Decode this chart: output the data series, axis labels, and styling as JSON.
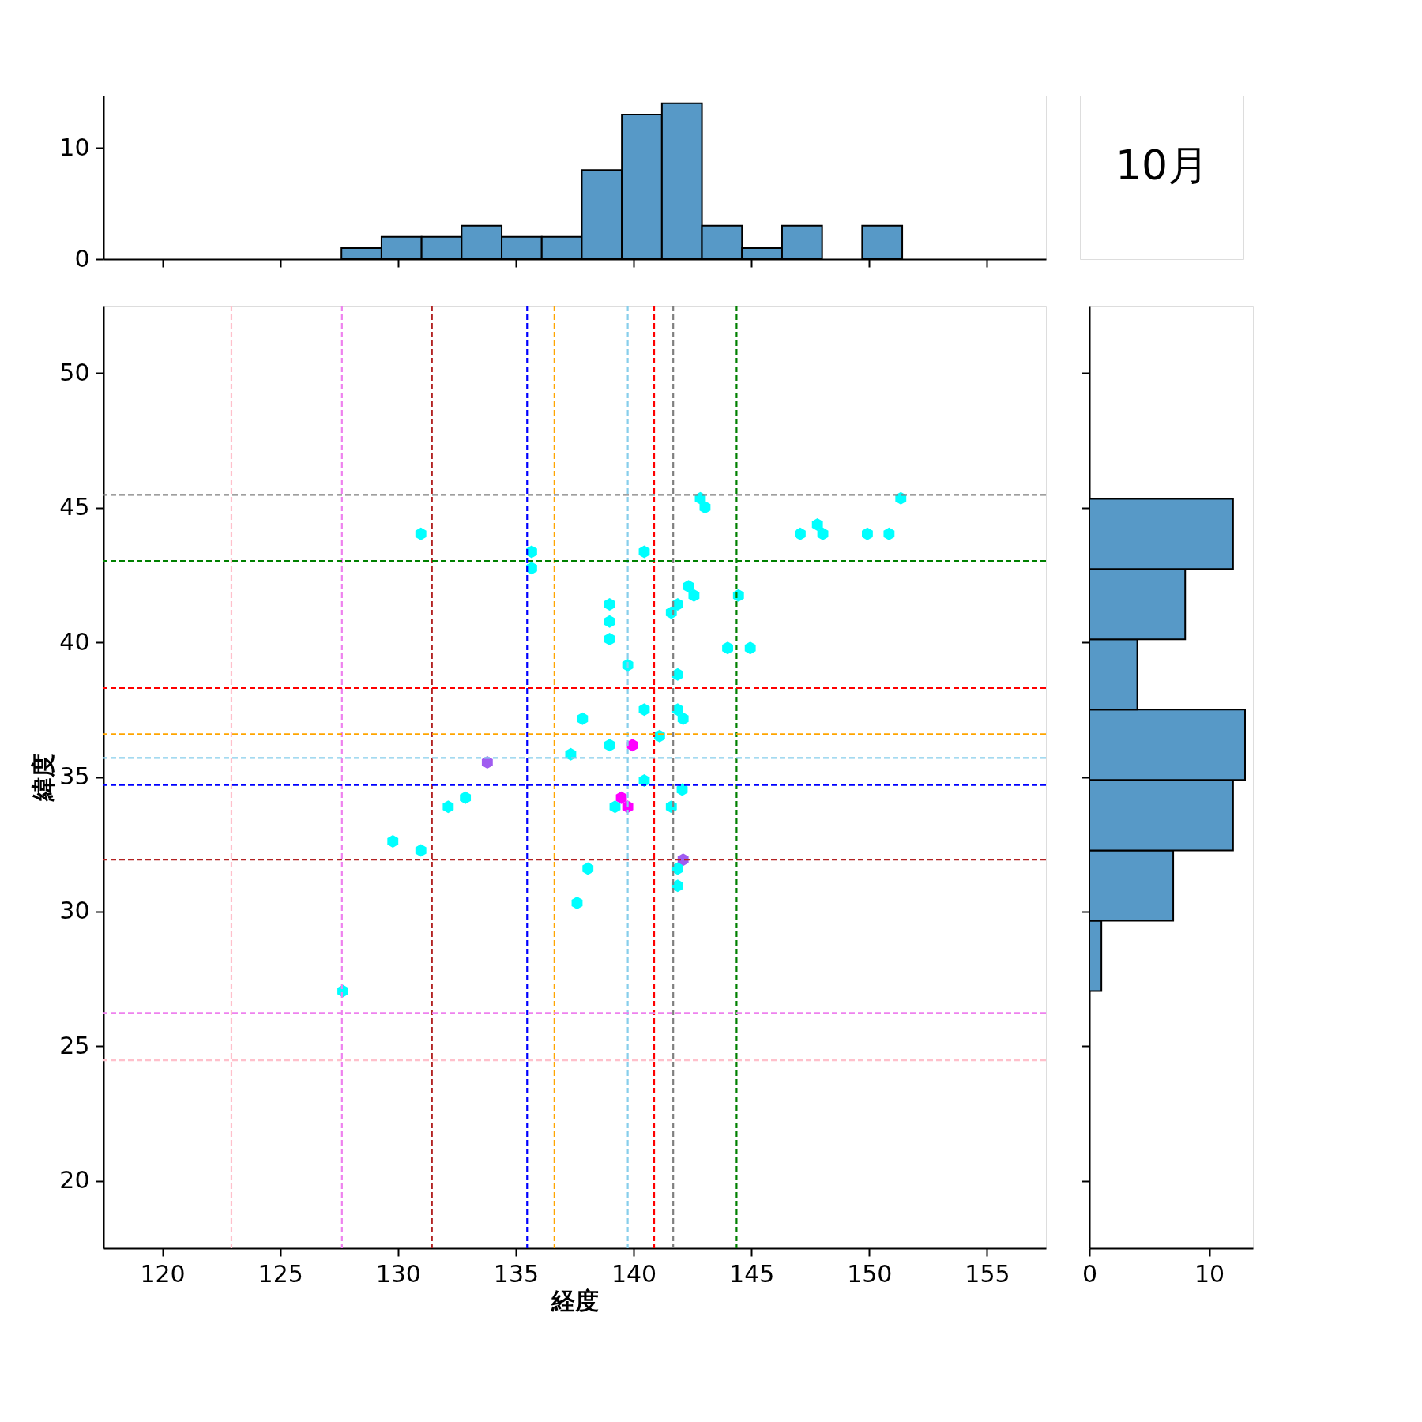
{
  "chart_data": [
    {
      "type": "histogram",
      "bins": [
        127.6,
        129.3,
        131.0,
        132.7,
        134.4,
        136.1,
        137.8,
        139.5,
        141.2,
        142.9,
        144.6,
        146.3,
        148.0,
        149.7,
        151.4
      ],
      "values": [
        1,
        2,
        2,
        3,
        2,
        2,
        8,
        13,
        14,
        3,
        1,
        3,
        0,
        3
      ],
      "color": "#5799c7",
      "xlim": [
        117.5,
        157.5
      ],
      "xticks": [
        120,
        125,
        130,
        135,
        140,
        145,
        150,
        155
      ],
      "ylim": [
        0,
        14.7
      ],
      "yticks": [
        0,
        10
      ],
      "tick_labels": "y",
      "grid": false
    },
    {
      "type": "other",
      "title": "10月"
    },
    {
      "type": "scatter",
      "xlabel": "経度",
      "ylabel": "緯度",
      "xlim": [
        117.5,
        157.5
      ],
      "xticks": [
        120,
        125,
        130,
        135,
        140,
        145,
        150,
        155
      ],
      "ylim": [
        17.5,
        52.5
      ],
      "yticks": [
        20,
        25,
        30,
        35,
        40,
        45,
        50
      ],
      "grid": false,
      "x": [
        130.97,
        135.67,
        135.67,
        140.45,
        142.83,
        143.03,
        151.34,
        147.07,
        147.8,
        148.03,
        149.92,
        150.84,
        138.98,
        138.98,
        138.98,
        142.33,
        142.56,
        141.87,
        141.6,
        144.45,
        143.99,
        144.95,
        139.75,
        141.87,
        137.83,
        140.45,
        141.87,
        142.1,
        137.33,
        138.98,
        139.95,
        141.1,
        133.79,
        140.45,
        142.06,
        132.86,
        132.13,
        139.48,
        139.21,
        139.75,
        141.6,
        129.78,
        130.97,
        142.1,
        141.87,
        138.06,
        141.87,
        137.6,
        127.66
      ],
      "values": [
        44.03,
        43.36,
        42.75,
        43.36,
        45.35,
        45.01,
        45.35,
        44.03,
        44.37,
        44.03,
        44.03,
        44.03,
        41.41,
        40.77,
        40.12,
        42.08,
        41.74,
        41.41,
        41.1,
        41.74,
        39.79,
        39.79,
        39.15,
        38.81,
        37.16,
        37.5,
        37.5,
        37.16,
        35.84,
        36.18,
        36.18,
        36.52,
        35.54,
        34.87,
        34.53,
        34.23,
        33.89,
        34.23,
        33.89,
        33.89,
        33.89,
        32.61,
        32.27,
        31.93,
        31.6,
        31.6,
        30.96,
        30.32,
        27.05
      ],
      "colors": [
        "#00ffff",
        "#00ffff",
        "#00ffff",
        "#00ffff",
        "#00ffff",
        "#00ffff",
        "#00ffff",
        "#00ffff",
        "#00ffff",
        "#00ffff",
        "#00ffff",
        "#00ffff",
        "#00ffff",
        "#00ffff",
        "#00ffff",
        "#00ffff",
        "#00ffff",
        "#00ffff",
        "#00ffff",
        "#00ffff",
        "#00ffff",
        "#00ffff",
        "#00ffff",
        "#00ffff",
        "#00ffff",
        "#00ffff",
        "#00ffff",
        "#00ffff",
        "#00ffff",
        "#00ffff",
        "#ff00ff",
        "#00ffff",
        "#a05cf0",
        "#00ffff",
        "#00ffff",
        "#00ffff",
        "#00ffff",
        "#ff00ff",
        "#00ffff",
        "#ff00ff",
        "#00ffff",
        "#00ffff",
        "#00ffff",
        "#a05cf0",
        "#00ffff",
        "#00ffff",
        "#00ffff",
        "#00ffff",
        "#00ffff"
      ],
      "ref_lines": [
        {
          "axis": "x",
          "value": 122.93,
          "color": "#ffc0cb",
          "line_style": "dashed"
        },
        {
          "axis": "x",
          "value": 127.62,
          "color": "#ee82ee",
          "line_style": "dashed"
        },
        {
          "axis": "x",
          "value": 131.44,
          "color": "#b22222",
          "line_style": "dashed"
        },
        {
          "axis": "x",
          "value": 135.48,
          "color": "#0000ff",
          "line_style": "dashed"
        },
        {
          "axis": "x",
          "value": 136.64,
          "color": "#ffa500",
          "line_style": "dashed"
        },
        {
          "axis": "x",
          "value": 139.75,
          "color": "#87ceeb",
          "line_style": "dashed"
        },
        {
          "axis": "x",
          "value": 140.87,
          "color": "#ff0000",
          "line_style": "dashed"
        },
        {
          "axis": "x",
          "value": 141.68,
          "color": "#808080",
          "line_style": "dashed"
        },
        {
          "axis": "x",
          "value": 144.37,
          "color": "#008000",
          "line_style": "dashed"
        },
        {
          "axis": "y",
          "value": 45.48,
          "color": "#808080",
          "line_style": "dashed"
        },
        {
          "axis": "y",
          "value": 43.02,
          "color": "#008000",
          "line_style": "dashed"
        },
        {
          "axis": "y",
          "value": 38.3,
          "color": "#ff0000",
          "line_style": "dashed"
        },
        {
          "axis": "y",
          "value": 36.59,
          "color": "#ffa500",
          "line_style": "dashed"
        },
        {
          "axis": "y",
          "value": 35.71,
          "color": "#87ceeb",
          "line_style": "dashed"
        },
        {
          "axis": "y",
          "value": 34.7,
          "color": "#0000ff",
          "line_style": "dashed"
        },
        {
          "axis": "y",
          "value": 31.93,
          "color": "#b22222",
          "line_style": "dashed"
        },
        {
          "axis": "y",
          "value": 26.23,
          "color": "#ee82ee",
          "line_style": "dashed"
        },
        {
          "axis": "y",
          "value": 24.48,
          "color": "#ffc0cb",
          "line_style": "dashed"
        }
      ]
    },
    {
      "type": "histogram",
      "orientation": "horizontal",
      "bins": [
        27.05,
        29.66,
        32.27,
        34.89,
        37.5,
        40.11,
        42.72,
        45.33
      ],
      "values": [
        1,
        7,
        12,
        13,
        4,
        8,
        12
      ],
      "color": "#5799c7",
      "xlim": [
        0,
        13.66
      ],
      "xticks": [
        0,
        10
      ],
      "ylim": [
        17.5,
        52.5
      ],
      "yticks": [
        20,
        25,
        30,
        35,
        40,
        45,
        50
      ],
      "tick_labels": "x",
      "grid": false
    }
  ]
}
